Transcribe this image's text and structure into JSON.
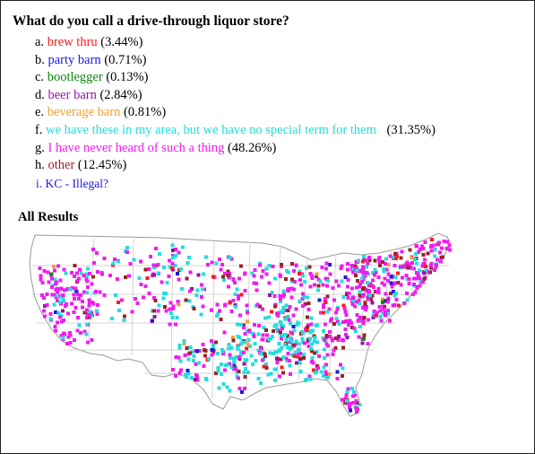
{
  "question": "What do you call a drive-through liquor store?",
  "options": [
    {
      "letter": "a.",
      "label": "brew thru",
      "pct": "(3.44%)",
      "color": "#ff1a1a"
    },
    {
      "letter": "b.",
      "label": "party barn",
      "pct": "(0.71%)",
      "color": "#1a1adc"
    },
    {
      "letter": "c.",
      "label": "bootlegger",
      "pct": "(0.13%)",
      "color": "#0a8a0a"
    },
    {
      "letter": "d.",
      "label": "beer barn",
      "pct": "(2.84%)",
      "color": "#8a1a9a"
    },
    {
      "letter": "e.",
      "label": "beverage barn",
      "pct": "(0.81%)",
      "color": "#f0a030"
    },
    {
      "letter": "f.",
      "label": "we have these in my area, but we have no special term for them",
      "pct": "(31.35%)",
      "color": "#22dede"
    },
    {
      "letter": "g.",
      "label": "I have never heard of such a thing",
      "pct": "(48.26%)",
      "color": "#f01cf0"
    },
    {
      "letter": "h.",
      "label": "other",
      "pct": "(12.45%)",
      "color": "#9a2424"
    }
  ],
  "extra_line": "i. KC - Illegal?",
  "extra_color": "#1a1adc",
  "results_title": "All Results",
  "map_data": {
    "type": "dot map",
    "region": "contiguous United States",
    "shares_by_option_letter": {
      "a": 3.44,
      "b": 0.71,
      "c": 0.13,
      "d": 2.84,
      "e": 0.81,
      "f": 31.35,
      "g": 48.26,
      "h": 12.45
    }
  }
}
